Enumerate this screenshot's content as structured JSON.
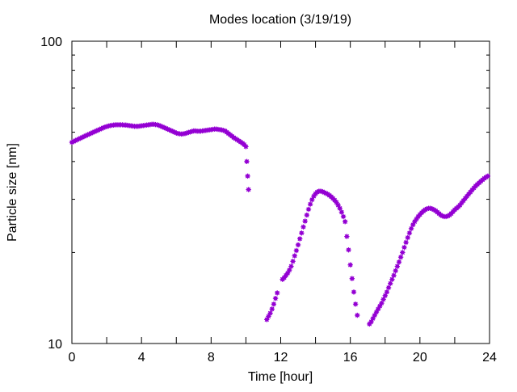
{
  "chart_data": {
    "type": "scatter",
    "title": "Modes location (3/19/19)",
    "xlabel": "Time [hour]",
    "ylabel": "Particle size [nm]",
    "xlim": [
      0,
      24
    ],
    "ylim": [
      10,
      100
    ],
    "yscale": "log",
    "x_ticks": [
      "0",
      "4",
      "8",
      "12",
      "16",
      "20",
      "24"
    ],
    "y_ticks": [
      "10",
      "100"
    ],
    "grid": false,
    "legend": "none",
    "marker_color": "#9400d3",
    "series": [
      {
        "points": [
          [
            0.0,
            46.3
          ],
          [
            0.1,
            46.6
          ],
          [
            0.2,
            46.9
          ],
          [
            0.3,
            47.2
          ],
          [
            0.4,
            47.5
          ],
          [
            0.5,
            47.8
          ],
          [
            0.6,
            48.1
          ],
          [
            0.7,
            48.4
          ],
          [
            0.8,
            48.7
          ],
          [
            0.9,
            49.0
          ],
          [
            1.0,
            49.3
          ],
          [
            1.1,
            49.6
          ],
          [
            1.2,
            49.9
          ],
          [
            1.3,
            50.2
          ],
          [
            1.4,
            50.5
          ],
          [
            1.5,
            50.8
          ],
          [
            1.6,
            51.1
          ],
          [
            1.7,
            51.4
          ],
          [
            1.8,
            51.7
          ],
          [
            1.9,
            52.0
          ],
          [
            2.0,
            52.2
          ],
          [
            2.1,
            52.4
          ],
          [
            2.2,
            52.6
          ],
          [
            2.3,
            52.7
          ],
          [
            2.4,
            52.8
          ],
          [
            2.5,
            52.9
          ],
          [
            2.6,
            52.9
          ],
          [
            2.7,
            52.9
          ],
          [
            2.8,
            52.9
          ],
          [
            2.9,
            52.9
          ],
          [
            3.0,
            52.8
          ],
          [
            3.1,
            52.8
          ],
          [
            3.2,
            52.7
          ],
          [
            3.3,
            52.6
          ],
          [
            3.4,
            52.5
          ],
          [
            3.5,
            52.4
          ],
          [
            3.6,
            52.3
          ],
          [
            3.7,
            52.3
          ],
          [
            3.8,
            52.3
          ],
          [
            3.9,
            52.4
          ],
          [
            4.0,
            52.5
          ],
          [
            4.1,
            52.6
          ],
          [
            4.2,
            52.7
          ],
          [
            4.3,
            52.8
          ],
          [
            4.4,
            52.9
          ],
          [
            4.5,
            53.0
          ],
          [
            4.6,
            53.1
          ],
          [
            4.7,
            53.1
          ],
          [
            4.8,
            53.0
          ],
          [
            4.9,
            52.9
          ],
          [
            5.0,
            52.7
          ],
          [
            5.1,
            52.4
          ],
          [
            5.2,
            52.1
          ],
          [
            5.3,
            51.8
          ],
          [
            5.4,
            51.5
          ],
          [
            5.5,
            51.2
          ],
          [
            5.6,
            50.9
          ],
          [
            5.7,
            50.6
          ],
          [
            5.8,
            50.3
          ],
          [
            5.9,
            50.0
          ],
          [
            6.0,
            49.7
          ],
          [
            6.1,
            49.5
          ],
          [
            6.2,
            49.4
          ],
          [
            6.3,
            49.3
          ],
          [
            6.4,
            49.4
          ],
          [
            6.5,
            49.5
          ],
          [
            6.6,
            49.7
          ],
          [
            6.7,
            49.9
          ],
          [
            6.8,
            50.1
          ],
          [
            6.9,
            50.3
          ],
          [
            7.0,
            50.5
          ],
          [
            7.1,
            50.5
          ],
          [
            7.2,
            50.4
          ],
          [
            7.3,
            50.4
          ],
          [
            7.4,
            50.4
          ],
          [
            7.5,
            50.5
          ],
          [
            7.6,
            50.6
          ],
          [
            7.7,
            50.7
          ],
          [
            7.8,
            50.8
          ],
          [
            7.9,
            50.9
          ],
          [
            8.0,
            51.0
          ],
          [
            8.1,
            51.1
          ],
          [
            8.2,
            51.2
          ],
          [
            8.3,
            51.2
          ],
          [
            8.4,
            51.1
          ],
          [
            8.5,
            51.0
          ],
          [
            8.6,
            50.9
          ],
          [
            8.7,
            50.7
          ],
          [
            8.8,
            50.5
          ],
          [
            8.9,
            50.0
          ],
          [
            9.0,
            49.5
          ],
          [
            9.1,
            49.0
          ],
          [
            9.2,
            48.5
          ],
          [
            9.3,
            48.0
          ],
          [
            9.4,
            47.6
          ],
          [
            9.5,
            47.2
          ],
          [
            9.6,
            46.8
          ],
          [
            9.7,
            46.4
          ],
          [
            9.8,
            46.0
          ],
          [
            9.9,
            45.5
          ],
          [
            10.0,
            44.8
          ],
          [
            10.05,
            40.0
          ],
          [
            10.1,
            35.8
          ],
          [
            10.15,
            32.3
          ],
          [
            11.2,
            12.0
          ],
          [
            11.3,
            12.3
          ],
          [
            11.4,
            12.6
          ],
          [
            11.5,
            13.0
          ],
          [
            11.6,
            13.5
          ],
          [
            11.7,
            14.1
          ],
          [
            11.8,
            14.7
          ],
          [
            12.1,
            16.3
          ],
          [
            12.2,
            16.5
          ],
          [
            12.3,
            16.8
          ],
          [
            12.4,
            17.1
          ],
          [
            12.5,
            17.5
          ],
          [
            12.6,
            18.0
          ],
          [
            12.7,
            18.7
          ],
          [
            12.8,
            19.5
          ],
          [
            12.9,
            20.3
          ],
          [
            13.0,
            21.2
          ],
          [
            13.1,
            22.2
          ],
          [
            13.2,
            23.2
          ],
          [
            13.3,
            24.3
          ],
          [
            13.4,
            25.4
          ],
          [
            13.5,
            26.6
          ],
          [
            13.6,
            27.8
          ],
          [
            13.7,
            28.9
          ],
          [
            13.8,
            29.9
          ],
          [
            13.9,
            30.7
          ],
          [
            14.0,
            31.3
          ],
          [
            14.1,
            31.7
          ],
          [
            14.2,
            31.9
          ],
          [
            14.3,
            31.9
          ],
          [
            14.4,
            31.8
          ],
          [
            14.5,
            31.6
          ],
          [
            14.6,
            31.4
          ],
          [
            14.7,
            31.2
          ],
          [
            14.8,
            30.9
          ],
          [
            14.9,
            30.6
          ],
          [
            15.0,
            30.2
          ],
          [
            15.1,
            29.8
          ],
          [
            15.2,
            29.3
          ],
          [
            15.3,
            28.7
          ],
          [
            15.4,
            28.0
          ],
          [
            15.5,
            27.2
          ],
          [
            15.6,
            26.3
          ],
          [
            15.7,
            25.3
          ],
          [
            15.8,
            22.6
          ],
          [
            15.9,
            20.4
          ],
          [
            16.0,
            18.2
          ],
          [
            16.1,
            16.4
          ],
          [
            16.2,
            14.8
          ],
          [
            16.3,
            13.5
          ],
          [
            16.4,
            12.4
          ],
          [
            17.1,
            11.6
          ],
          [
            17.2,
            11.8
          ],
          [
            17.3,
            12.1
          ],
          [
            17.4,
            12.4
          ],
          [
            17.5,
            12.7
          ],
          [
            17.6,
            13.0
          ],
          [
            17.7,
            13.3
          ],
          [
            17.8,
            13.6
          ],
          [
            17.9,
            14.0
          ],
          [
            18.0,
            14.4
          ],
          [
            18.1,
            14.8
          ],
          [
            18.2,
            15.3
          ],
          [
            18.3,
            15.8
          ],
          [
            18.4,
            16.3
          ],
          [
            18.5,
            16.8
          ],
          [
            18.6,
            17.4
          ],
          [
            18.7,
            18.0
          ],
          [
            18.8,
            18.6
          ],
          [
            18.9,
            19.3
          ],
          [
            19.0,
            20.0
          ],
          [
            19.1,
            20.8
          ],
          [
            19.2,
            21.6
          ],
          [
            19.3,
            22.4
          ],
          [
            19.4,
            23.2
          ],
          [
            19.5,
            24.0
          ],
          [
            19.6,
            24.7
          ],
          [
            19.7,
            25.3
          ],
          [
            19.8,
            25.8
          ],
          [
            19.9,
            26.3
          ],
          [
            20.0,
            26.7
          ],
          [
            20.1,
            27.1
          ],
          [
            20.2,
            27.4
          ],
          [
            20.3,
            27.7
          ],
          [
            20.4,
            27.9
          ],
          [
            20.5,
            28.0
          ],
          [
            20.6,
            28.0
          ],
          [
            20.7,
            27.9
          ],
          [
            20.8,
            27.7
          ],
          [
            20.9,
            27.5
          ],
          [
            21.0,
            27.2
          ],
          [
            21.1,
            26.9
          ],
          [
            21.2,
            26.6
          ],
          [
            21.3,
            26.4
          ],
          [
            21.4,
            26.3
          ],
          [
            21.5,
            26.3
          ],
          [
            21.6,
            26.4
          ],
          [
            21.7,
            26.6
          ],
          [
            21.8,
            26.9
          ],
          [
            21.9,
            27.3
          ],
          [
            22.0,
            27.7
          ],
          [
            22.1,
            28.0
          ],
          [
            22.2,
            28.3
          ],
          [
            22.3,
            28.7
          ],
          [
            22.4,
            29.2
          ],
          [
            22.5,
            29.7
          ],
          [
            22.6,
            30.2
          ],
          [
            22.7,
            30.7
          ],
          [
            22.8,
            31.2
          ],
          [
            22.9,
            31.7
          ],
          [
            23.0,
            32.2
          ],
          [
            23.1,
            32.7
          ],
          [
            23.2,
            33.2
          ],
          [
            23.3,
            33.6
          ],
          [
            23.4,
            34.0
          ],
          [
            23.5,
            34.4
          ],
          [
            23.6,
            34.8
          ],
          [
            23.7,
            35.2
          ],
          [
            23.8,
            35.5
          ],
          [
            23.9,
            35.8
          ]
        ]
      }
    ]
  }
}
